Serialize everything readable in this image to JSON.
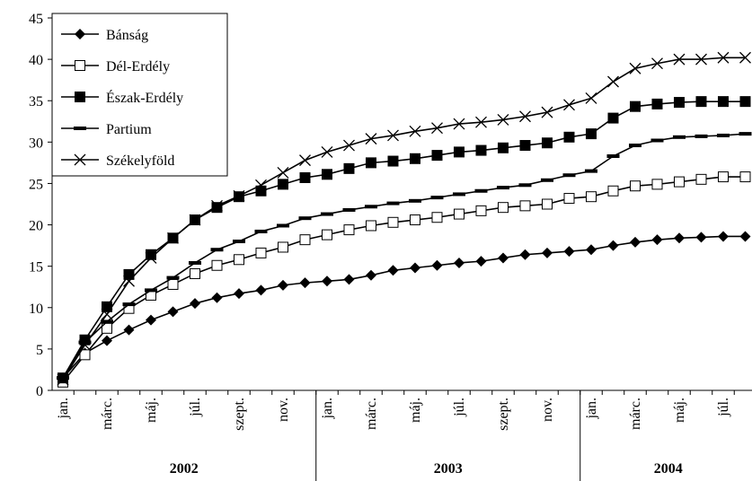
{
  "chart_data": {
    "type": "line",
    "categories": [
      "jan.",
      null,
      "márc.",
      null,
      "máj.",
      null,
      "júl.",
      null,
      "szept.",
      null,
      "nov.",
      null,
      "jan.",
      null,
      "márc.",
      null,
      "máj.",
      null,
      "júl.",
      null,
      "szept.",
      null,
      "nov.",
      null,
      "jan.",
      null,
      "márc.",
      null,
      "máj.",
      null,
      "júl.",
      null
    ],
    "groups": [
      "2002",
      "2003",
      "2004"
    ],
    "ylim": [
      0,
      45
    ],
    "yticks": [
      0,
      5,
      10,
      15,
      20,
      25,
      30,
      35,
      40,
      45
    ],
    "grid": false,
    "legend": "upper left",
    "series": [
      {
        "name": "Bánság",
        "color": "#000000",
        "marker": "diamond",
        "values": [
          1.5,
          4.5,
          6,
          7.3,
          8.5,
          9.5,
          10.5,
          11.2,
          11.7,
          12.1,
          12.7,
          13,
          13.2,
          13.4,
          13.9,
          14.5,
          14.8,
          15.1,
          15.4,
          15.6,
          16,
          16.4,
          16.6,
          16.8,
          17,
          17.5,
          17.9,
          18.2,
          18.4,
          18.5,
          18.6,
          18.6
        ]
      },
      {
        "name": "Dél-Erdély",
        "color": "#000000",
        "marker": "open-square",
        "values": [
          1,
          4.3,
          7.5,
          9.9,
          11.5,
          12.8,
          14.1,
          15.1,
          15.8,
          16.6,
          17.3,
          18.2,
          18.8,
          19.4,
          19.9,
          20.3,
          20.6,
          20.9,
          21.3,
          21.7,
          22.1,
          22.3,
          22.5,
          23.2,
          23.4,
          24.1,
          24.7,
          24.9,
          25.2,
          25.5,
          25.8,
          25.8
        ]
      },
      {
        "name": "Észak-Erdély",
        "color": "#000000",
        "marker": "square",
        "values": [
          1.5,
          6.1,
          10.1,
          14,
          16.4,
          18.4,
          20.6,
          22.1,
          23.4,
          24.1,
          24.9,
          25.7,
          26.1,
          26.8,
          27.5,
          27.7,
          28,
          28.4,
          28.8,
          29,
          29.3,
          29.6,
          29.9,
          30.6,
          31,
          32.9,
          34.3,
          34.6,
          34.8,
          34.9,
          34.9,
          34.9
        ]
      },
      {
        "name": "Partium",
        "color": "#000000",
        "marker": "dash",
        "values": [
          1.5,
          5.8,
          8.3,
          10.4,
          12.1,
          13.6,
          15.4,
          17,
          18,
          19.2,
          19.9,
          20.8,
          21.3,
          21.8,
          22.2,
          22.6,
          22.9,
          23.3,
          23.7,
          24.1,
          24.5,
          24.8,
          25.4,
          26,
          26.5,
          28.3,
          29.6,
          30.2,
          30.6,
          30.7,
          30.8,
          31
        ]
      },
      {
        "name": "Székelyföld",
        "color": "#000000",
        "marker": "cross",
        "values": [
          1.3,
          5.5,
          9.2,
          13.2,
          16,
          18.4,
          20.6,
          22.3,
          23.5,
          24.8,
          26.3,
          27.8,
          28.8,
          29.6,
          30.4,
          30.8,
          31.3,
          31.7,
          32.2,
          32.4,
          32.7,
          33.1,
          33.6,
          34.5,
          35.3,
          37.3,
          38.9,
          39.5,
          40,
          40,
          40.2,
          40.2
        ]
      }
    ]
  }
}
